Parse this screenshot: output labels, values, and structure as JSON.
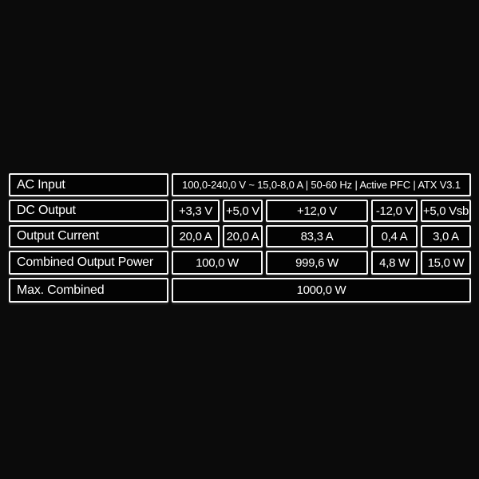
{
  "page": {
    "background_color": "#0b0b0b",
    "cell_background_color": "#030303",
    "border_color": "#f7f7f7",
    "text_color": "#ffffff"
  },
  "table": {
    "rows": [
      {
        "label": "AC Input",
        "cells": [
          {
            "value": "100,0-240,0 V ~ 15,0-8,0 A | 50-60 Hz | Active PFC | ATX V3.1"
          }
        ]
      },
      {
        "label": "DC Output",
        "cells": [
          {
            "value": "+3,3 V"
          },
          {
            "value": "+5,0 V"
          },
          {
            "value": "+12,0 V"
          },
          {
            "value": "-12,0 V"
          },
          {
            "value": "+5,0 Vsb"
          }
        ]
      },
      {
        "label": "Output Current",
        "cells": [
          {
            "value": "20,0 A"
          },
          {
            "value": "20,0 A"
          },
          {
            "value": "83,3 A"
          },
          {
            "value": "0,4 A"
          },
          {
            "value": "3,0 A"
          }
        ]
      },
      {
        "label": "Combined Output Power",
        "cells": [
          {
            "value": "100,0 W"
          },
          {
            "value": "999,6 W"
          },
          {
            "value": "4,8 W"
          },
          {
            "value": "15,0 W"
          }
        ]
      },
      {
        "label": "Max. Combined",
        "cells": [
          {
            "value": "1000,0 W"
          }
        ]
      }
    ]
  },
  "chart_data": {
    "type": "table",
    "title": "Power supply specification label",
    "row_headers": [
      "AC Input",
      "DC Output",
      "Output Current",
      "Combined Output Power",
      "Max. Combined"
    ],
    "dc_rails": [
      "+3,3 V",
      "+5,0 V",
      "+12,0 V",
      "-12,0 V",
      "+5,0 Vsb"
    ],
    "ac_input": "100,0-240,0 V ~ 15,0-8,0 A | 50-60 Hz | Active PFC | ATX V3.1",
    "output_current": [
      "20,0 A",
      "20,0 A",
      "83,3 A",
      "0,4 A",
      "3,0 A"
    ],
    "combined_output_power": [
      {
        "rails": [
          "+3,3 V",
          "+5,0 V"
        ],
        "value": "100,0 W"
      },
      {
        "rails": [
          "+12,0 V"
        ],
        "value": "999,6 W"
      },
      {
        "rails": [
          "-12,0 V"
        ],
        "value": "4,8 W"
      },
      {
        "rails": [
          "+5,0 Vsb"
        ],
        "value": "15,0 W"
      }
    ],
    "max_combined": "1000,0 W"
  }
}
